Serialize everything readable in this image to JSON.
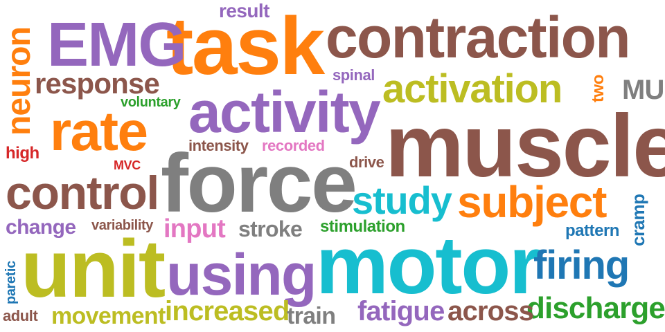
{
  "colors": {
    "purple": "#9467bd",
    "orange": "#ff7f0e",
    "brown": "#8c564b",
    "olive": "#bcbd22",
    "gray": "#7f7f7f",
    "cyan": "#17becf",
    "blue": "#1f77b4",
    "green": "#2ca02c",
    "red": "#d62728",
    "pink": "#e377c2"
  },
  "words": [
    {
      "text": "muscle",
      "color": "#8c564b"
    },
    {
      "text": "force",
      "color": "#7f7f7f"
    },
    {
      "text": "motor",
      "color": "#17becf"
    },
    {
      "text": "contraction",
      "color": "#8c564b"
    },
    {
      "text": "task",
      "color": "#ff7f0e"
    },
    {
      "text": "unit",
      "color": "#bcbd22"
    },
    {
      "text": "activity",
      "color": "#9467bd"
    },
    {
      "text": "EMG",
      "color": "#9467bd"
    },
    {
      "text": "using",
      "color": "#9467bd"
    },
    {
      "text": "activation",
      "color": "#bcbd22"
    },
    {
      "text": "rate",
      "color": "#ff7f0e"
    },
    {
      "text": "control",
      "color": "#8c564b"
    },
    {
      "text": "subject",
      "color": "#ff7f0e"
    },
    {
      "text": "firing",
      "color": "#1f77b4"
    },
    {
      "text": "study",
      "color": "#17becf"
    },
    {
      "text": "neuron",
      "color": "#ff7f0e"
    },
    {
      "text": "discharge",
      "color": "#2ca02c"
    },
    {
      "text": "increased",
      "color": "#bcbd22"
    },
    {
      "text": "response",
      "color": "#8c564b"
    },
    {
      "text": "fatigue",
      "color": "#9467bd"
    },
    {
      "text": "across",
      "color": "#8c564b"
    },
    {
      "text": "movement",
      "color": "#bcbd22"
    },
    {
      "text": "stroke",
      "color": "#7f7f7f"
    },
    {
      "text": "input",
      "color": "#e377c2"
    },
    {
      "text": "change",
      "color": "#9467bd"
    },
    {
      "text": "train",
      "color": "#7f7f7f"
    },
    {
      "text": "MU",
      "color": "#7f7f7f"
    },
    {
      "text": "result",
      "color": "#9467bd"
    },
    {
      "text": "stimulation",
      "color": "#2ca02c"
    },
    {
      "text": "cramp",
      "color": "#1f77b4"
    },
    {
      "text": "pattern",
      "color": "#1f77b4"
    },
    {
      "text": "variability",
      "color": "#8c564b"
    },
    {
      "text": "recorded",
      "color": "#e377c2"
    },
    {
      "text": "intensity",
      "color": "#8c564b"
    },
    {
      "text": "high",
      "color": "#d62728"
    },
    {
      "text": "voluntary",
      "color": "#2ca02c"
    },
    {
      "text": "spinal",
      "color": "#9467bd"
    },
    {
      "text": "drive",
      "color": "#8c564b"
    },
    {
      "text": "two",
      "color": "#ff7f0e"
    },
    {
      "text": "MVC",
      "color": "#d62728"
    },
    {
      "text": "paretic",
      "color": "#1f77b4"
    },
    {
      "text": "adult",
      "color": "#8c564b"
    }
  ]
}
